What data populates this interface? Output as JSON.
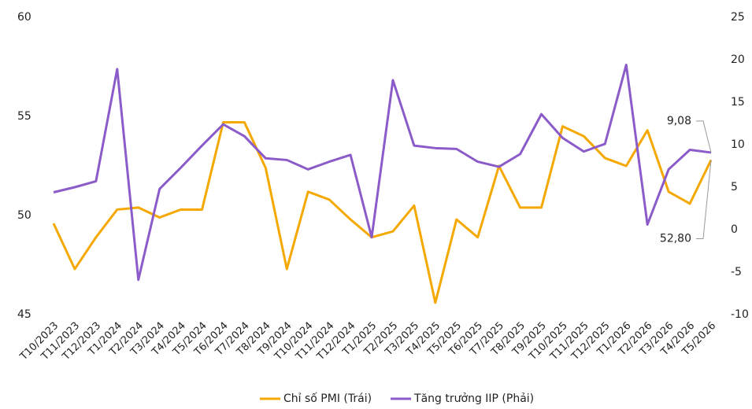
{
  "chart_data": {
    "type": "line",
    "categories": [
      "T10/2023",
      "T11/2023",
      "T12/2023",
      "T1/2024",
      "T2/2024",
      "T3/2024",
      "T4/2024",
      "T5/2024",
      "T6/2024",
      "T7/2024",
      "T8/2024",
      "T9/2024",
      "T10/2024",
      "T11/2024",
      "T12/2024",
      "T1/2025",
      "T2/2025",
      "T3/2025",
      "T4/2025",
      "T5/2025",
      "T6/2025",
      "T7/2025",
      "T8/2025",
      "T9/2025",
      "T10/2025",
      "T11/2025",
      "T12/2025",
      "T1/2026",
      "T2/2026",
      "T3/2026",
      "T4/2026",
      "T5/2026"
    ],
    "series": [
      {
        "name": "Chỉ số PMI (Trái)",
        "color": "#f5a800",
        "axis": "y",
        "values": [
          49.6,
          47.3,
          48.9,
          50.3,
          50.4,
          49.9,
          50.3,
          50.3,
          54.7,
          54.7,
          52.4,
          47.3,
          51.2,
          50.8,
          49.8,
          48.9,
          49.2,
          50.5,
          45.6,
          49.8,
          48.9,
          52.5,
          50.4,
          50.4,
          54.5,
          54.0,
          52.9,
          52.5,
          54.3,
          51.2,
          50.6,
          52.8
        ],
        "value_labels": [
          null,
          null,
          null,
          null,
          null,
          null,
          null,
          null,
          null,
          null,
          null,
          null,
          null,
          null,
          null,
          null,
          null,
          null,
          null,
          null,
          null,
          null,
          null,
          null,
          null,
          null,
          null,
          null,
          null,
          null,
          null,
          "52,80"
        ]
      },
      {
        "name": "Tăng trưởng IIP (Phải)",
        "color": "#8b5cc9",
        "axis": "y2",
        "values": [
          4.4,
          5.0,
          5.7,
          18.9,
          -5.9,
          4.8,
          7.3,
          9.9,
          12.4,
          11.0,
          8.4,
          8.2,
          7.1,
          8.0,
          8.8,
          -0.9,
          17.6,
          9.9,
          9.6,
          9.5,
          8.0,
          7.4,
          8.9,
          13.6,
          10.8,
          9.2,
          10.1,
          19.4,
          0.6,
          7.1,
          9.4,
          9.08
        ],
        "value_labels": [
          null,
          null,
          null,
          null,
          null,
          null,
          null,
          null,
          null,
          null,
          null,
          null,
          null,
          null,
          null,
          null,
          null,
          null,
          null,
          null,
          null,
          null,
          null,
          null,
          null,
          null,
          null,
          null,
          null,
          null,
          null,
          "9,08"
        ]
      }
    ],
    "ylim": [
      45,
      60
    ],
    "yticks": [
      45,
      50,
      55,
      60
    ],
    "y2lim": [
      -10,
      25
    ],
    "y2ticks": [
      -10,
      -5,
      0,
      5,
      10,
      15,
      20,
      25
    ],
    "grid": false,
    "legend": "bottom"
  }
}
